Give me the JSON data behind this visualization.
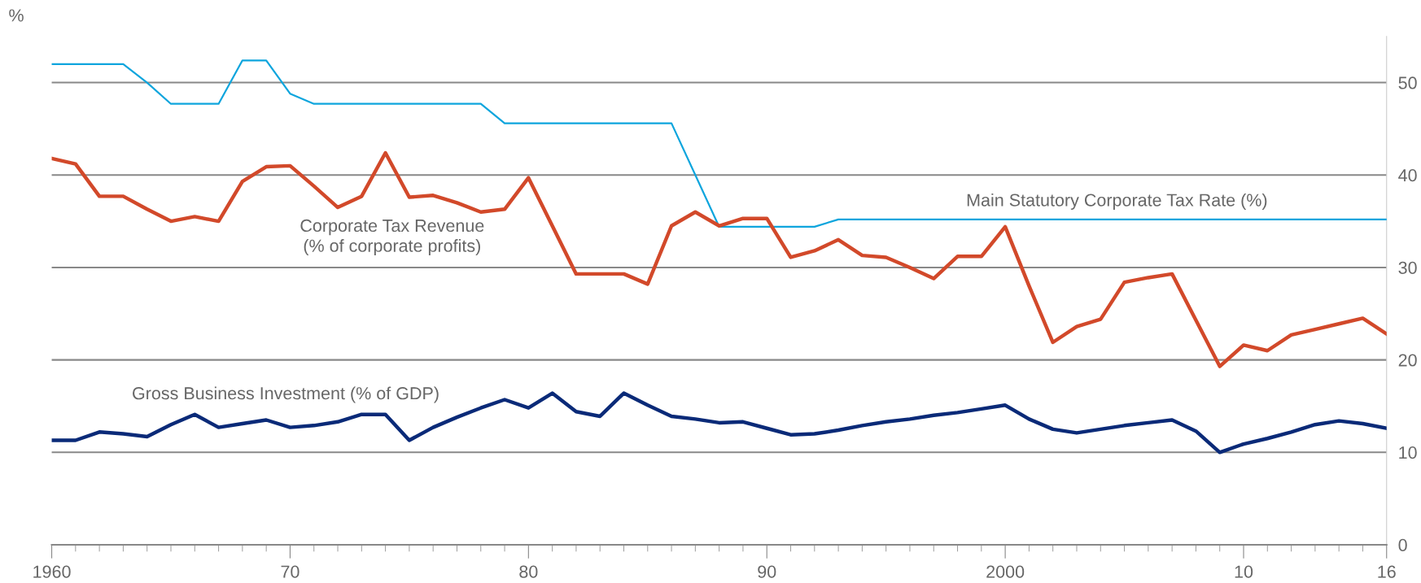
{
  "chart_data": {
    "type": "line",
    "ylabel": "%",
    "x": [
      1960,
      1961,
      1962,
      1963,
      1964,
      1965,
      1966,
      1967,
      1968,
      1969,
      1970,
      1971,
      1972,
      1973,
      1974,
      1975,
      1976,
      1977,
      1978,
      1979,
      1980,
      1981,
      1982,
      1983,
      1984,
      1985,
      1986,
      1987,
      1988,
      1989,
      1990,
      1991,
      1992,
      1993,
      1994,
      1995,
      1996,
      1997,
      1998,
      1999,
      2000,
      2001,
      2002,
      2003,
      2004,
      2005,
      2006,
      2007,
      2008,
      2009,
      2010,
      2011,
      2012,
      2013,
      2014,
      2015,
      2016
    ],
    "series": [
      {
        "name": "Main Statutory Corporate Tax Rate (%)",
        "color": "#0ea5dd",
        "values": [
          52.0,
          52.0,
          52.0,
          52.0,
          50.0,
          47.7,
          47.7,
          47.7,
          52.4,
          52.4,
          48.8,
          47.7,
          47.7,
          47.7,
          47.7,
          47.7,
          47.7,
          47.7,
          47.7,
          45.6,
          45.6,
          45.6,
          45.6,
          45.6,
          45.6,
          45.6,
          45.6,
          40.0,
          34.4,
          34.4,
          34.4,
          34.4,
          34.4,
          35.2,
          35.2,
          35.2,
          35.2,
          35.2,
          35.2,
          35.2,
          35.2,
          35.2,
          35.2,
          35.2,
          35.2,
          35.2,
          35.2,
          35.2,
          35.2,
          35.2,
          35.2,
          35.2,
          35.2,
          35.2,
          35.2,
          35.2,
          35.2
        ]
      },
      {
        "name": "Corporate Tax Revenue\n(% of corporate profits)",
        "color": "#d2492a",
        "values": [
          41.8,
          41.2,
          37.7,
          37.7,
          36.3,
          35.0,
          35.5,
          35.0,
          39.3,
          40.9,
          41.0,
          38.8,
          36.5,
          37.7,
          42.4,
          37.6,
          37.8,
          37.0,
          36.0,
          36.3,
          39.7,
          34.5,
          29.3,
          29.3,
          29.3,
          28.2,
          34.5,
          36.0,
          34.5,
          35.3,
          35.3,
          31.1,
          31.8,
          33.0,
          31.3,
          31.1,
          30.0,
          28.8,
          31.2,
          31.2,
          34.4,
          28.0,
          21.9,
          23.6,
          24.4,
          28.4,
          28.9,
          29.3,
          24.3,
          19.3,
          21.6,
          21.0,
          22.7,
          23.3,
          23.9,
          24.5,
          22.8
        ]
      },
      {
        "name": "Gross Business Investment (% of GDP)",
        "color": "#0a2a78",
        "values": [
          11.3,
          11.3,
          12.2,
          12.0,
          11.7,
          13.0,
          14.1,
          12.7,
          13.1,
          13.5,
          12.7,
          12.9,
          13.3,
          14.1,
          14.1,
          11.3,
          12.7,
          13.8,
          14.8,
          15.7,
          14.8,
          16.4,
          14.4,
          13.9,
          16.4,
          15.1,
          13.9,
          13.6,
          13.2,
          13.3,
          12.6,
          11.9,
          12.0,
          12.4,
          12.9,
          13.3,
          13.6,
          14.0,
          14.3,
          14.7,
          15.1,
          13.6,
          12.5,
          12.1,
          12.5,
          12.9,
          13.2,
          13.5,
          12.3,
          10.0,
          10.9,
          11.5,
          12.2,
          13.0,
          13.4,
          13.1,
          12.6
        ]
      }
    ],
    "xlim": [
      1960,
      2016
    ],
    "xticks": [
      1960,
      {
        "value": 1970,
        "label": "70"
      },
      {
        "value": 1980,
        "label": "80"
      },
      {
        "value": 1990,
        "label": "90"
      },
      2000,
      {
        "value": 2010,
        "label": "10"
      },
      {
        "value": 2016,
        "label": "16"
      }
    ],
    "ylim": [
      0,
      55
    ],
    "yticks": [
      0,
      10,
      20,
      30,
      40,
      50
    ],
    "grid": "y",
    "legend": false,
    "marker": "none",
    "line_style": "solid"
  }
}
